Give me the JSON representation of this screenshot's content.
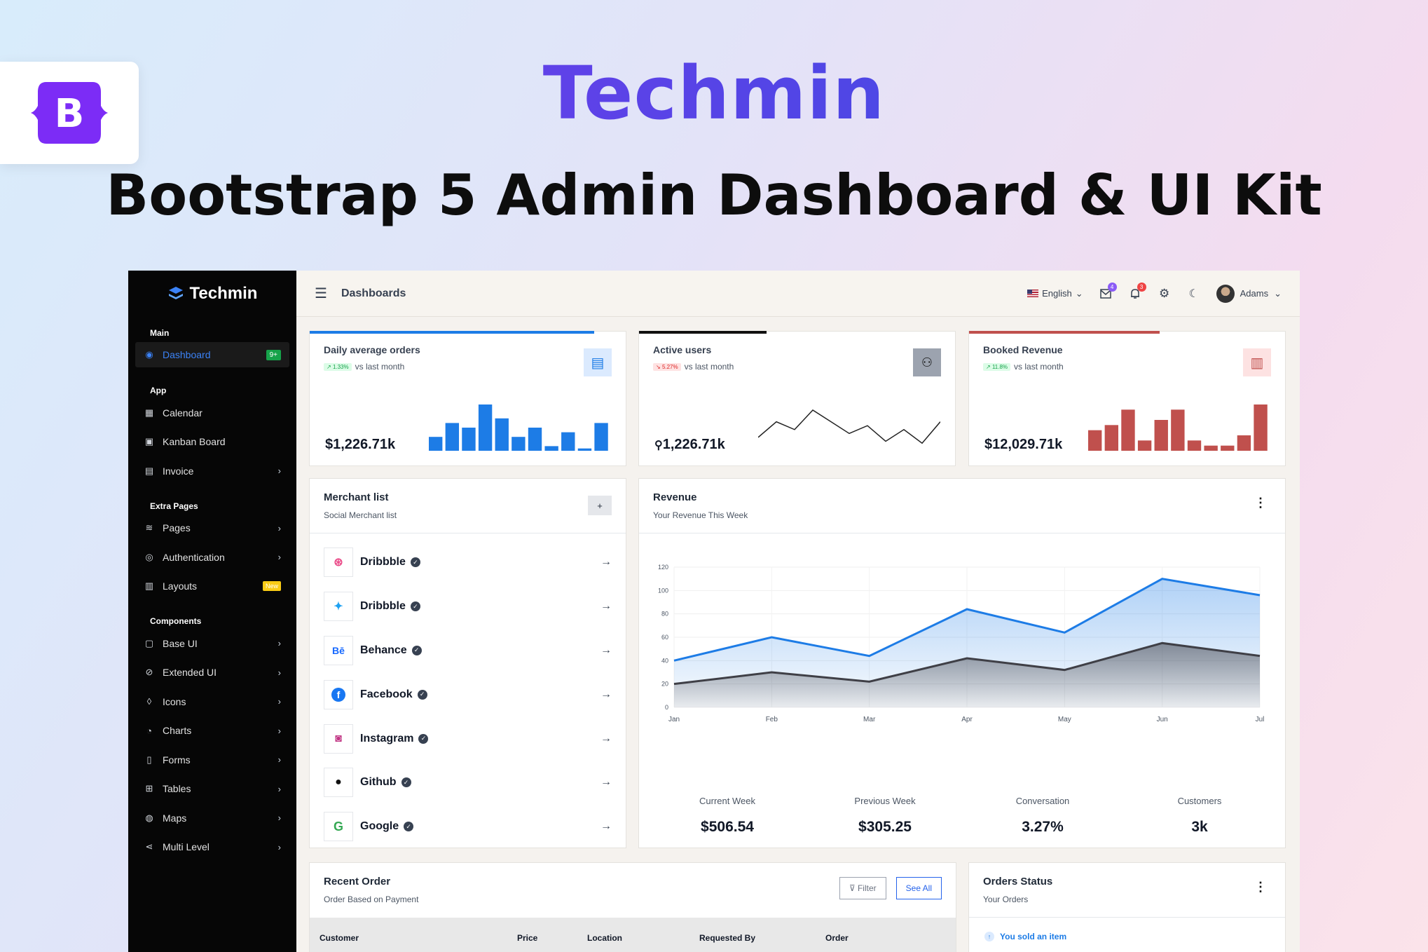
{
  "hero": {
    "product_name": "Techmin",
    "tagline": "Bootstrap 5 Admin Dashboard & UI Kit",
    "logo_letter": "B"
  },
  "sidebar": {
    "brand": "Techmin",
    "sections": {
      "main": "Main",
      "app": "App",
      "extra": "Extra Pages",
      "components": "Components"
    },
    "items": [
      {
        "label": "Dashboard",
        "icon": "dashboard-icon",
        "badge": "9+"
      },
      {
        "label": "Calendar",
        "icon": "calendar-icon"
      },
      {
        "label": "Kanban Board",
        "icon": "kanban-icon"
      },
      {
        "label": "Invoice",
        "icon": "invoice-icon"
      },
      {
        "label": "Pages",
        "icon": "layers-icon"
      },
      {
        "label": "Authentication",
        "icon": "user-circle-icon"
      },
      {
        "label": "Layouts",
        "icon": "layout-icon",
        "badge": "New"
      },
      {
        "label": "Base UI",
        "icon": "briefcase-icon"
      },
      {
        "label": "Extended UI",
        "icon": "compass-icon"
      },
      {
        "label": "Icons",
        "icon": "drop-icon"
      },
      {
        "label": "Charts",
        "icon": "pie-chart-icon"
      },
      {
        "label": "Forms",
        "icon": "clipboard-icon"
      },
      {
        "label": "Tables",
        "icon": "table-icon"
      },
      {
        "label": "Maps",
        "icon": "map-pin-icon"
      },
      {
        "label": "Multi Level",
        "icon": "share-icon"
      }
    ]
  },
  "topbar": {
    "title": "Dashboards",
    "language": "English",
    "mail_count": "4",
    "notification_count": "3",
    "user": "Adams"
  },
  "stats": [
    {
      "title": "Daily average orders",
      "trend": "1.33%",
      "trend_suffix": "vs last month",
      "value": "1,226.71k",
      "prefix": "$",
      "accent": "#1d7ce6",
      "bars": [
        3,
        6,
        5,
        10,
        7,
        3,
        5,
        1,
        4,
        0.5,
        6
      ]
    },
    {
      "title": "Active users",
      "trend": "5.27%",
      "trend_suffix": "vs last month",
      "value": "1,226.71k",
      "accent": "#111111",
      "line": [
        2,
        6,
        4,
        9,
        6,
        3,
        5,
        1,
        4,
        0.5,
        6
      ]
    },
    {
      "title": "Booked Revenue",
      "trend": "11.8%",
      "trend_suffix": "vs last month",
      "value": "12,029.71k",
      "prefix": "$",
      "accent": "#c0504d",
      "bars": [
        4,
        5,
        8,
        2,
        6,
        8,
        2,
        1,
        1,
        3,
        9
      ]
    }
  ],
  "merchants": {
    "title": "Merchant list",
    "subtitle": "Social Merchant list",
    "add_label": "+",
    "items": [
      {
        "name": "Dribbble",
        "icon": "dribbble-icon",
        "color": "#ea4c89"
      },
      {
        "name": "Dribbble",
        "icon": "twitter-icon",
        "color": "#1da1f2"
      },
      {
        "name": "Behance",
        "icon": "behance-icon",
        "color": "#1769ff"
      },
      {
        "name": "Facebook",
        "icon": "facebook-icon",
        "color": "#1877f2"
      },
      {
        "name": "Instagram",
        "icon": "instagram-icon",
        "color": "#c13584"
      },
      {
        "name": "Github",
        "icon": "github-icon",
        "color": "#111111"
      },
      {
        "name": "Google",
        "icon": "google-icon",
        "color": "#34a853"
      }
    ]
  },
  "revenue": {
    "title": "Revenue",
    "subtitle": "Your Revenue This Week",
    "stats": [
      {
        "label": "Current Week",
        "value": "$506.54"
      },
      {
        "label": "Previous Week",
        "value": "$305.25"
      },
      {
        "label": "Conversation",
        "value": "3.27%"
      },
      {
        "label": "Customers",
        "value": "3k"
      }
    ]
  },
  "chart_data": {
    "type": "area",
    "categories": [
      "Jan",
      "Feb",
      "Mar",
      "Apr",
      "May",
      "Jun",
      "Jul"
    ],
    "series": [
      {
        "values": [
          40,
          60,
          44,
          84,
          64,
          110,
          96
        ],
        "color": "#1d7ce6"
      },
      {
        "values": [
          20,
          30,
          22,
          42,
          32,
          55,
          44
        ],
        "color": "#3f3f46"
      }
    ],
    "ylim": [
      0,
      120
    ],
    "yticks": [
      0,
      20,
      40,
      60,
      80,
      100,
      120
    ],
    "grid": true
  },
  "recent_orders": {
    "title": "Recent Order",
    "subtitle": "Order Based on Payment",
    "filter_label": "Filter",
    "see_all_label": "See All",
    "columns": [
      "Customer",
      "Price",
      "Location",
      "Requested By",
      "Order"
    ]
  },
  "orders_status": {
    "title": "Orders Status",
    "subtitle": "Your Orders",
    "first_item": "You sold an item"
  }
}
